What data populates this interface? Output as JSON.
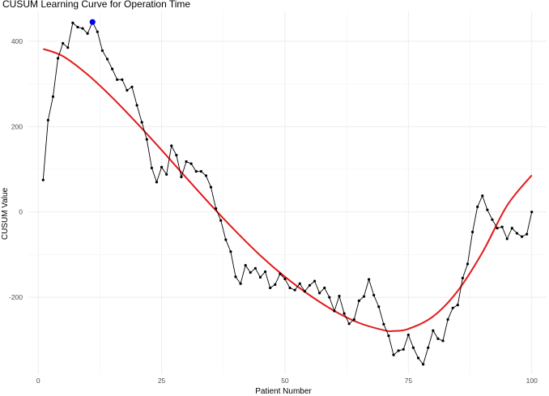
{
  "chart_data": {
    "type": "line",
    "title": "CUSUM Learning Curve for Operation Time",
    "xlabel": "Patient Number",
    "ylabel": "CUSUM Value",
    "xlim": [
      -2,
      103
    ],
    "ylim": [
      -380,
      470
    ],
    "x_ticks": [
      0,
      25,
      50,
      75,
      100
    ],
    "y_ticks": [
      -200,
      0,
      200,
      400
    ],
    "x_tick_labels": [
      "0",
      "25",
      "50",
      "75",
      "100"
    ],
    "y_tick_labels": [
      "-200",
      "0",
      "200",
      "400"
    ],
    "grid": true,
    "legend": "none",
    "colors": {
      "cusum": "#000000",
      "fit": "#e31a1c",
      "peak": "#0000ee"
    },
    "series": [
      {
        "role": "cusum",
        "x": [
          1,
          2,
          3,
          4,
          5,
          6,
          7,
          8,
          9,
          10,
          11,
          12,
          13,
          14,
          15,
          16,
          17,
          18,
          19,
          20,
          21,
          22,
          23,
          24,
          25,
          26,
          27,
          28,
          29,
          30,
          31,
          32,
          33,
          34,
          35,
          36,
          37,
          38,
          39,
          40,
          41,
          42,
          43,
          44,
          45,
          46,
          47,
          48,
          49,
          50,
          51,
          52,
          53,
          54,
          55,
          56,
          57,
          58,
          59,
          60,
          61,
          62,
          63,
          64,
          65,
          66,
          67,
          68,
          69,
          70,
          71,
          72,
          73,
          74,
          75,
          76,
          77,
          78,
          79,
          80,
          81,
          82,
          83,
          84,
          85,
          86,
          87,
          88,
          89,
          90,
          91,
          92,
          93,
          94,
          95,
          96,
          97,
          98,
          99,
          100
        ],
        "y": [
          75,
          215,
          270,
          360,
          395,
          385,
          443,
          433,
          430,
          418,
          445,
          422,
          378,
          358,
          335,
          310,
          310,
          285,
          293,
          250,
          210,
          170,
          103,
          70,
          105,
          88,
          155,
          133,
          82,
          118,
          113,
          95,
          95,
          85,
          58,
          8,
          -20,
          -65,
          -93,
          -152,
          -168,
          -125,
          -142,
          -132,
          -153,
          -140,
          -178,
          -170,
          -145,
          -157,
          -178,
          -183,
          -168,
          -186,
          -172,
          -162,
          -190,
          -178,
          -200,
          -232,
          -197,
          -238,
          -262,
          -252,
          -208,
          -198,
          -158,
          -195,
          -222,
          -263,
          -290,
          -335,
          -325,
          -322,
          -288,
          -318,
          -342,
          -357,
          -318,
          -278,
          -297,
          -302,
          -252,
          -225,
          -218,
          -155,
          -122,
          -47,
          12,
          38,
          5,
          -18,
          -38,
          -35,
          -63,
          -38,
          -50,
          -58,
          -52,
          0
        ]
      },
      {
        "role": "fit",
        "x": [
          1,
          5,
          10,
          15,
          20,
          25,
          30,
          35,
          40,
          45,
          50,
          55,
          60,
          65,
          70,
          72,
          75,
          80,
          85,
          90,
          95,
          100
        ],
        "y": [
          382,
          365,
          322,
          268,
          208,
          145,
          80,
          16,
          -45,
          -102,
          -152,
          -195,
          -232,
          -260,
          -277,
          -279,
          -274,
          -245,
          -185,
          -95,
          15,
          86
        ]
      }
    ],
    "highlight": {
      "x": 11,
      "y": 445
    }
  }
}
